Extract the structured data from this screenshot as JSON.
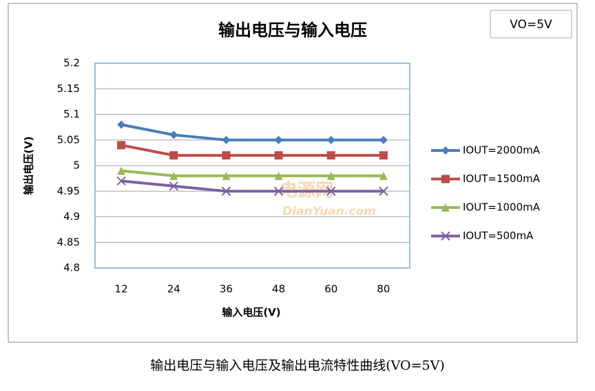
{
  "chart_data": {
    "type": "line",
    "title": "输出电压与输入电压",
    "note": "VO=5V",
    "x_label": "输入电压(V)",
    "y_label": "输出电压(V)",
    "caption": "输出电压与输入电压及输出电流特性曲线(VO=5V)",
    "watermark": [
      "电源网",
      "DianYuan.com"
    ],
    "categories": [
      "12",
      "24",
      "36",
      "48",
      "60",
      "80"
    ],
    "series": [
      {
        "name": "IOUT=2000mA",
        "color": "#4a7ebb",
        "marker": "diamond",
        "values": [
          5.08,
          5.06,
          5.05,
          5.05,
          5.05,
          5.05
        ]
      },
      {
        "name": "IOUT=1500mA",
        "color": "#be4b48",
        "marker": "square",
        "values": [
          5.04,
          5.02,
          5.02,
          5.02,
          5.02,
          5.02
        ]
      },
      {
        "name": "IOUT=1000mA",
        "color": "#98b954",
        "marker": "triangle",
        "values": [
          4.99,
          4.98,
          4.98,
          4.98,
          4.98,
          4.98
        ]
      },
      {
        "name": "IOUT=500mA",
        "color": "#7d60a0",
        "marker": "x",
        "values": [
          4.97,
          4.96,
          4.95,
          4.95,
          4.95,
          4.95
        ]
      }
    ],
    "ylim": [
      4.8,
      5.2
    ],
    "yticks": [
      5.2,
      5.15,
      5.1,
      5.05,
      5,
      4.95,
      4.9,
      4.85,
      4.8
    ],
    "grid": true,
    "legend": "right"
  }
}
